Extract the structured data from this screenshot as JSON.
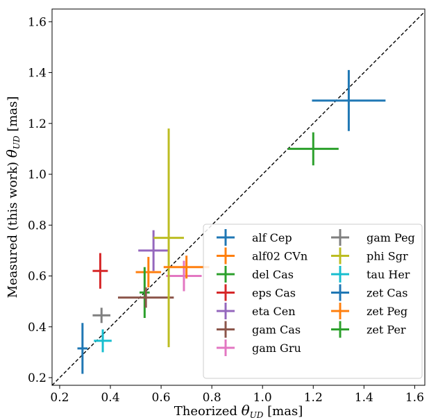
{
  "chart_data": {
    "type": "scatter",
    "xlabel": "Theorized θ_UD [mas]",
    "ylabel": "Measured (this work) θ_UD [mas]",
    "xlabel_parts": [
      "Theorized ",
      "θ",
      "UD",
      " [mas]"
    ],
    "ylabel_parts": [
      "Measured (this work) ",
      "θ",
      "UD",
      " [mas]"
    ],
    "xlim": [
      0.17,
      1.64
    ],
    "ylim": [
      0.17,
      1.65
    ],
    "xticks": [
      0.2,
      0.4,
      0.6,
      0.8,
      1.0,
      1.2,
      1.4,
      1.6
    ],
    "yticks": [
      0.2,
      0.4,
      0.6,
      0.8,
      1.0,
      1.2,
      1.4,
      1.6
    ],
    "xtick_labels": [
      "0.2",
      "0.4",
      "0.6",
      "0.8",
      "1.0",
      "1.2",
      "1.4",
      "1.6"
    ],
    "ytick_labels": [
      "0.2",
      "0.4",
      "0.6",
      "0.8",
      "1.0",
      "1.2",
      "1.4",
      "1.6"
    ],
    "reference_line": {
      "type": "y=x",
      "style": "dashed",
      "color": "#000000"
    },
    "grid": false,
    "legend_position": "lower-right",
    "legend_columns": 2,
    "series": [
      {
        "name": "alf Cep",
        "color": "#1f77b4",
        "x": 0.29,
        "y": 0.315,
        "xerr": 0.02,
        "yerr": 0.1
      },
      {
        "name": "alf02 CVn",
        "color": "#ff7f0e",
        "x": 0.55,
        "y": 0.615,
        "xerr": 0.05,
        "yerr": 0.06
      },
      {
        "name": "del Cas",
        "color": "#2ca02c",
        "x": 0.535,
        "y": 0.535,
        "xerr": 0.02,
        "yerr": 0.1
      },
      {
        "name": "eps Cas",
        "color": "#d62728",
        "x": 0.36,
        "y": 0.62,
        "xerr": 0.03,
        "yerr": 0.07
      },
      {
        "name": "eta Cen",
        "color": "#9467bd",
        "x": 0.57,
        "y": 0.7,
        "xerr": 0.06,
        "yerr": 0.08
      },
      {
        "name": "gam Cas",
        "color": "#8c564b",
        "x": 0.54,
        "y": 0.515,
        "xerr": 0.11,
        "yerr": 0.04
      },
      {
        "name": "gam Gru",
        "color": "#e377c2",
        "x": 0.69,
        "y": 0.6,
        "xerr": 0.07,
        "yerr": 0.06
      },
      {
        "name": "gam Peg",
        "color": "#7f7f7f",
        "x": 0.365,
        "y": 0.445,
        "xerr": 0.035,
        "yerr": 0.03
      },
      {
        "name": "phi Sgr",
        "color": "#bcbd22",
        "x": 0.63,
        "y": 0.75,
        "xerr": 0.06,
        "yerr": 0.43
      },
      {
        "name": "tau Her",
        "color": "#17becf",
        "x": 0.37,
        "y": 0.345,
        "xerr": 0.035,
        "yerr": 0.045
      },
      {
        "name": "zet Cas",
        "color": "#1f77b4",
        "x": 1.34,
        "y": 1.29,
        "xerr": 0.145,
        "yerr": 0.12
      },
      {
        "name": "zet Peg",
        "color": "#ff7f0e",
        "x": 0.7,
        "y": 0.635,
        "xerr": 0.09,
        "yerr": 0.045
      },
      {
        "name": "zet Per",
        "color": "#2ca02c",
        "x": 1.2,
        "y": 1.1,
        "xerr": 0.1,
        "yerr": 0.065
      }
    ]
  }
}
